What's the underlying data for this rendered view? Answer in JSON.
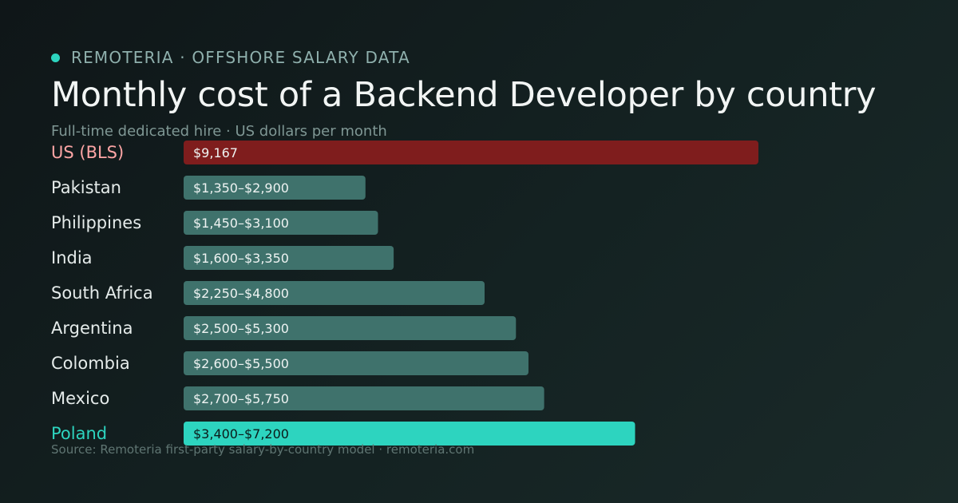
{
  "header": {
    "brand": "REMOTERIA · OFFSHORE SALARY DATA",
    "title": "Monthly cost of a Backend Developer by country",
    "subtitle": "Full-time dedicated hire · US dollars per month"
  },
  "footer": {
    "source": "Source: Remoteria first-party salary-by-country model · remoteria.com"
  },
  "colors": {
    "brand_dot": "#2dd4bf",
    "us_bar": "#7f1d1d",
    "us_label": "#fca5a5",
    "default_bar": "#3f726c",
    "default_label": "#e5ebea",
    "highlight_bar": "#2dd4bf",
    "highlight_label": "#2dd4bf",
    "value_text_light": "#eef3f2",
    "value_text_dark": "#0b1a19"
  },
  "chart_data": {
    "type": "bar",
    "orientation": "horizontal",
    "categories": [
      "US (BLS)",
      "Pakistan",
      "Philippines",
      "India",
      "South Africa",
      "Argentina",
      "Colombia",
      "Mexico",
      "Poland"
    ],
    "values": [
      9167,
      2900,
      3100,
      3350,
      4800,
      5300,
      5500,
      5750,
      7200
    ],
    "value_labels": [
      "$9,167",
      "$1,350–$2,900",
      "$1,450–$3,100",
      "$1,600–$3,350",
      "$2,250–$4,800",
      "$2,500–$5,300",
      "$2,600–$5,500",
      "$2,700–$5,750",
      "$3,400–$7,200"
    ],
    "highlights": {
      "US (BLS)": "benchmark",
      "Poland": "highlight"
    },
    "xlim": [
      0,
      9167
    ],
    "grid": false,
    "legend": "none"
  }
}
